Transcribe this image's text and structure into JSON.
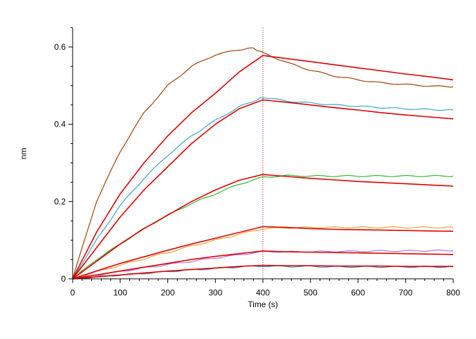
{
  "chart_data": {
    "type": "line",
    "title": "",
    "xlabel": "Time (s)",
    "ylabel": "nm",
    "xlim": [
      0,
      800
    ],
    "ylim": [
      0,
      0.65
    ],
    "x_ticks": [
      0,
      100,
      200,
      300,
      400,
      500,
      600,
      700,
      800
    ],
    "x_tick_labels": [
      "0",
      "100",
      "200",
      "300",
      "400",
      "500",
      "600",
      "700",
      "800"
    ],
    "y_ticks": [
      0,
      0.2,
      0.4,
      0.6
    ],
    "y_tick_labels": [
      "0",
      "0.2",
      "0.4",
      "0.6"
    ],
    "grid": false,
    "legend": "none",
    "annotations": [
      {
        "type": "vertical-dotted-line",
        "x": 400,
        "color": "#c00000"
      }
    ],
    "series": [
      {
        "kind": "measured",
        "color": "#a0400a",
        "x": [
          0,
          50,
          100,
          150,
          200,
          250,
          300,
          350,
          380,
          400,
          450,
          500,
          550,
          600,
          650,
          700,
          750,
          800
        ],
        "values": [
          0,
          0.2,
          0.33,
          0.43,
          0.5,
          0.55,
          0.58,
          0.593,
          0.597,
          0.585,
          0.56,
          0.54,
          0.525,
          0.515,
          0.507,
          0.503,
          0.499,
          0.497
        ]
      },
      {
        "kind": "fit",
        "color": "#e00000",
        "x": [
          0,
          50,
          100,
          150,
          200,
          250,
          300,
          350,
          400,
          450,
          500,
          550,
          600,
          650,
          700,
          750,
          800
        ],
        "values": [
          0,
          0.12,
          0.22,
          0.3,
          0.37,
          0.43,
          0.48,
          0.535,
          0.578,
          0.57,
          0.562,
          0.554,
          0.546,
          0.538,
          0.53,
          0.523,
          0.515
        ]
      },
      {
        "kind": "measured",
        "color": "#3aa6c0",
        "x": [
          0,
          50,
          100,
          150,
          200,
          250,
          300,
          350,
          390,
          400,
          450,
          500,
          550,
          600,
          650,
          700,
          750,
          800
        ],
        "values": [
          0,
          0.1,
          0.19,
          0.26,
          0.32,
          0.37,
          0.41,
          0.445,
          0.465,
          0.47,
          0.46,
          0.455,
          0.45,
          0.447,
          0.443,
          0.44,
          0.438,
          0.437
        ]
      },
      {
        "kind": "fit",
        "color": "#e00000",
        "x": [
          0,
          50,
          100,
          150,
          200,
          250,
          300,
          350,
          400,
          450,
          500,
          550,
          600,
          650,
          700,
          750,
          800
        ],
        "values": [
          0,
          0.08,
          0.16,
          0.23,
          0.29,
          0.35,
          0.4,
          0.44,
          0.463,
          0.457,
          0.45,
          0.443,
          0.437,
          0.43,
          0.424,
          0.419,
          0.414
        ]
      },
      {
        "kind": "measured",
        "color": "#2db82d",
        "x": [
          0,
          50,
          100,
          150,
          200,
          250,
          300,
          350,
          400,
          450,
          500,
          550,
          600,
          650,
          700,
          750,
          800
        ],
        "values": [
          0,
          0.05,
          0.09,
          0.13,
          0.165,
          0.195,
          0.22,
          0.245,
          0.263,
          0.267,
          0.266,
          0.266,
          0.266,
          0.266,
          0.266,
          0.266,
          0.266
        ]
      },
      {
        "kind": "fit",
        "color": "#e00000",
        "x": [
          0,
          50,
          100,
          150,
          200,
          250,
          300,
          350,
          400,
          450,
          500,
          550,
          600,
          650,
          700,
          750,
          800
        ],
        "values": [
          0,
          0.045,
          0.09,
          0.13,
          0.165,
          0.2,
          0.23,
          0.255,
          0.27,
          0.265,
          0.26,
          0.256,
          0.252,
          0.249,
          0.246,
          0.243,
          0.24
        ]
      },
      {
        "kind": "measured",
        "color": "#f0a030",
        "x": [
          0,
          50,
          100,
          150,
          200,
          250,
          300,
          350,
          400,
          450,
          500,
          550,
          600,
          650,
          700,
          750,
          800
        ],
        "values": [
          0,
          0.018,
          0.035,
          0.052,
          0.068,
          0.085,
          0.1,
          0.115,
          0.13,
          0.132,
          0.133,
          0.133,
          0.133,
          0.133,
          0.133,
          0.133,
          0.133
        ]
      },
      {
        "kind": "fit",
        "color": "#e00000",
        "x": [
          0,
          50,
          100,
          150,
          200,
          250,
          300,
          350,
          400,
          450,
          500,
          550,
          600,
          650,
          700,
          750,
          800
        ],
        "values": [
          0,
          0.02,
          0.04,
          0.057,
          0.074,
          0.09,
          0.105,
          0.12,
          0.135,
          0.133,
          0.13,
          0.128,
          0.127,
          0.126,
          0.125,
          0.124,
          0.123
        ]
      },
      {
        "kind": "measured",
        "color": "#b070e0",
        "x": [
          0,
          50,
          100,
          150,
          200,
          250,
          300,
          350,
          400,
          450,
          500,
          550,
          600,
          650,
          700,
          750,
          800
        ],
        "values": [
          0,
          0.01,
          0.019,
          0.028,
          0.037,
          0.045,
          0.054,
          0.062,
          0.07,
          0.07,
          0.07,
          0.071,
          0.071,
          0.072,
          0.072,
          0.073,
          0.073
        ]
      },
      {
        "kind": "fit",
        "color": "#e00000",
        "x": [
          0,
          50,
          100,
          150,
          200,
          250,
          300,
          350,
          400,
          450,
          500,
          550,
          600,
          650,
          700,
          750,
          800
        ],
        "values": [
          0,
          0.01,
          0.02,
          0.03,
          0.04,
          0.05,
          0.058,
          0.065,
          0.072,
          0.07,
          0.069,
          0.068,
          0.067,
          0.066,
          0.065,
          0.064,
          0.063
        ]
      },
      {
        "kind": "measured",
        "color": "#3a7ea8",
        "x": [
          0,
          50,
          100,
          150,
          200,
          250,
          300,
          350,
          400,
          450,
          500,
          550,
          600,
          650,
          700,
          750,
          800
        ],
        "values": [
          0,
          0.005,
          0.01,
          0.014,
          0.019,
          0.023,
          0.027,
          0.031,
          0.033,
          0.032,
          0.032,
          0.031,
          0.031,
          0.031,
          0.031,
          0.031,
          0.031
        ]
      },
      {
        "kind": "fit",
        "color": "#e00000",
        "x": [
          0,
          50,
          100,
          150,
          200,
          250,
          300,
          350,
          400,
          450,
          500,
          550,
          600,
          650,
          700,
          750,
          800
        ],
        "values": [
          0,
          0.005,
          0.01,
          0.015,
          0.02,
          0.024,
          0.028,
          0.032,
          0.035,
          0.034,
          0.034,
          0.033,
          0.033,
          0.033,
          0.032,
          0.032,
          0.032
        ]
      }
    ]
  }
}
